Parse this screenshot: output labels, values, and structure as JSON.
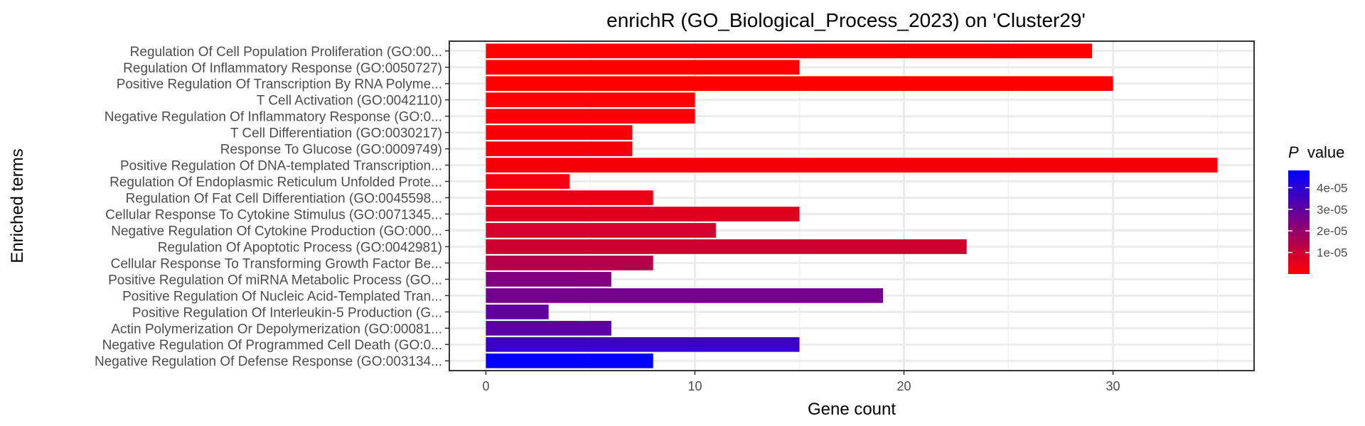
{
  "chart_data": {
    "type": "bar",
    "orientation": "horizontal",
    "title": "enrichR (GO_Biological_Process_2023) on 'Cluster29'",
    "xlabel": "Gene count",
    "ylabel": "Enriched terms",
    "xlim": [
      -1.75,
      36.75
    ],
    "xticks": [
      0,
      10,
      20,
      30
    ],
    "grid": true,
    "legend": {
      "title_italic": "P",
      "title_rest": "value",
      "placement": "right",
      "gradient_low_color": "#ff0000",
      "gradient_high_color": "#0000ff",
      "range": [
        0,
        4.8e-05
      ],
      "ticks": [
        {
          "value": 1e-05,
          "label": "1e-05"
        },
        {
          "value": 2e-05,
          "label": "2e-05"
        },
        {
          "value": 3e-05,
          "label": "3e-05"
        },
        {
          "value": 4e-05,
          "label": "4e-05"
        }
      ]
    },
    "bars": [
      {
        "term": "Regulation Of Cell Population Proliferation (GO:00...",
        "count": 29,
        "pvalue": 4e-08
      },
      {
        "term": "Regulation Of Inflammatory Response (GO:0050727)",
        "count": 15,
        "pvalue": 1e-07
      },
      {
        "term": "Positive Regulation Of Transcription By RNA Polyme...",
        "count": 30,
        "pvalue": 3e-07
      },
      {
        "term": "T Cell Activation (GO:0042110)",
        "count": 10,
        "pvalue": 6e-07
      },
      {
        "term": "Negative Regulation Of Inflammatory Response (GO:0...",
        "count": 10,
        "pvalue": 8e-07
      },
      {
        "term": "T Cell Differentiation (GO:0030217)",
        "count": 7,
        "pvalue": 1.3e-06
      },
      {
        "term": "Response To Glucose (GO:0009749)",
        "count": 7,
        "pvalue": 1.4e-06
      },
      {
        "term": "Positive Regulation Of DNA-templated Transcription...",
        "count": 35,
        "pvalue": 1.5e-06
      },
      {
        "term": "Regulation Of Endoplasmic Reticulum Unfolded Prote...",
        "count": 4,
        "pvalue": 2.5e-06
      },
      {
        "term": "Regulation Of Fat Cell Differentiation (GO:0045598...",
        "count": 8,
        "pvalue": 4e-06
      },
      {
        "term": "Cellular Response To Cytokine Stimulus (GO:0071345...",
        "count": 15,
        "pvalue": 6e-06
      },
      {
        "term": "Negative Regulation Of Cytokine Production (GO:000...",
        "count": 11,
        "pvalue": 8e-06
      },
      {
        "term": "Regulation Of Apoptotic Process (GO:0042981)",
        "count": 23,
        "pvalue": 9e-06
      },
      {
        "term": "Cellular Response To Transforming Growth Factor Be...",
        "count": 8,
        "pvalue": 1.4e-05
      },
      {
        "term": "Positive Regulation Of miRNA Metabolic Process (GO...",
        "count": 6,
        "pvalue": 2.4e-05
      },
      {
        "term": "Positive Regulation Of Nucleic Acid-Templated Tran...",
        "count": 19,
        "pvalue": 2.6e-05
      },
      {
        "term": "Positive Regulation Of Interleukin-5 Production (G...",
        "count": 3,
        "pvalue": 3e-05
      },
      {
        "term": "Actin Polymerization Or Depolymerization (GO:00081...",
        "count": 6,
        "pvalue": 3.1e-05
      },
      {
        "term": "Negative Regulation Of Programmed Cell Death (GO:0...",
        "count": 15,
        "pvalue": 3.7e-05
      },
      {
        "term": "Negative Regulation Of Defense Response (GO:003134...",
        "count": 8,
        "pvalue": 4.8e-05
      }
    ]
  }
}
